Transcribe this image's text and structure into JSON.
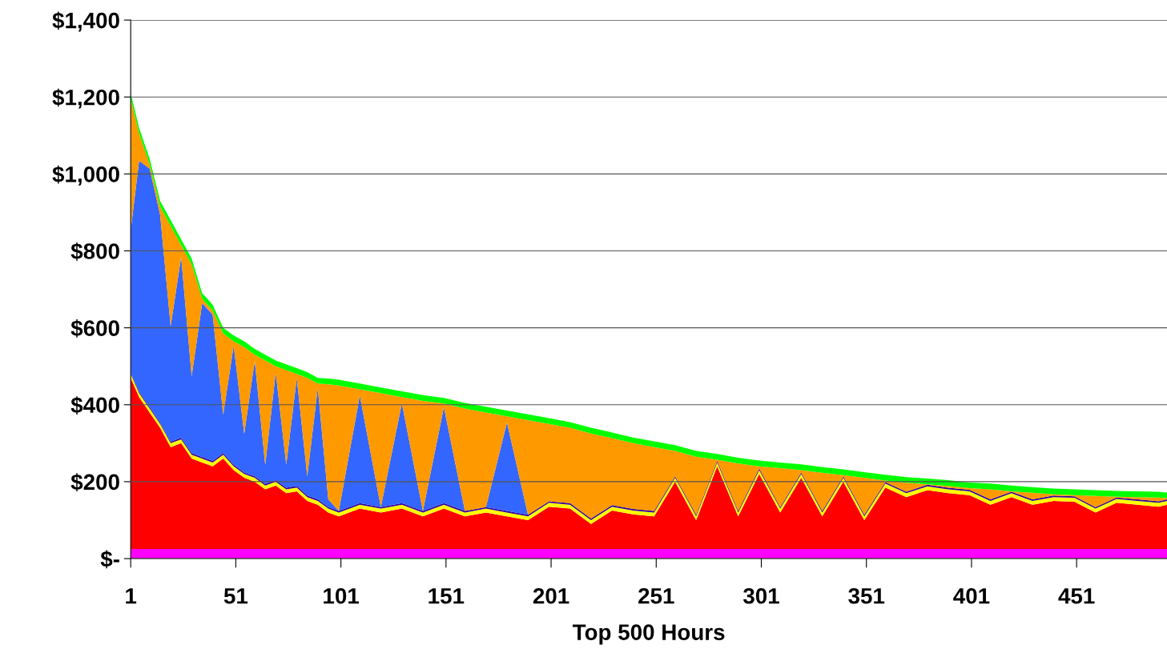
{
  "chart_data": {
    "type": "area",
    "stacked": true,
    "xlabel": "Top 500 Hours",
    "x": [
      1,
      5,
      10,
      15,
      20,
      25,
      30,
      35,
      40,
      45,
      50,
      55,
      60,
      65,
      70,
      75,
      80,
      85,
      90,
      95,
      100,
      110,
      120,
      130,
      140,
      150,
      160,
      170,
      180,
      190,
      200,
      210,
      220,
      230,
      240,
      250,
      260,
      270,
      280,
      290,
      300,
      310,
      320,
      330,
      340,
      350,
      360,
      370,
      380,
      390,
      400,
      410,
      420,
      430,
      440,
      450,
      460,
      470,
      480,
      490,
      494
    ],
    "xlim": [
      1,
      494
    ],
    "xticks": [
      1,
      51,
      101,
      151,
      201,
      251,
      301,
      351,
      401,
      451
    ],
    "ylim": [
      0,
      1400
    ],
    "yticks": [
      {
        "value": 0,
        "label": "$-"
      },
      {
        "value": 200,
        "label": "$200"
      },
      {
        "value": 400,
        "label": "$400"
      },
      {
        "value": 600,
        "label": "$600"
      },
      {
        "value": 800,
        "label": "$800"
      },
      {
        "value": 1000,
        "label": "$1,000"
      },
      {
        "value": 1200,
        "label": "$1,200"
      },
      {
        "value": 1400,
        "label": "$1,400"
      }
    ],
    "grid": "y",
    "legend": false,
    "series": [
      {
        "color": "#ff00ff",
        "values": [
          25,
          25,
          25,
          25,
          25,
          25,
          25,
          25,
          25,
          25,
          25,
          25,
          25,
          25,
          25,
          25,
          25,
          25,
          25,
          25,
          25,
          25,
          25,
          25,
          25,
          25,
          25,
          25,
          25,
          25,
          25,
          25,
          25,
          25,
          25,
          25,
          25,
          25,
          25,
          25,
          25,
          25,
          25,
          25,
          25,
          25,
          25,
          25,
          25,
          25,
          25,
          25,
          25,
          25,
          25,
          25,
          25,
          25,
          25,
          25,
          25
        ]
      },
      {
        "color": "#ff0000",
        "values": [
          445,
          395,
          355,
          315,
          265,
          275,
          235,
          225,
          215,
          235,
          205,
          185,
          175,
          155,
          165,
          145,
          150,
          125,
          115,
          95,
          85,
          105,
          95,
          105,
          85,
          105,
          85,
          95,
          85,
          75,
          110,
          105,
          65,
          100,
          90,
          85,
          175,
          75,
          215,
          85,
          195,
          95,
          185,
          85,
          175,
          75,
          160,
          135,
          153,
          145,
          140,
          115,
          135,
          115,
          125,
          123,
          95,
          120,
          115,
          110,
          115
        ]
      },
      {
        "color": "#ffff00",
        "values": [
          10,
          10,
          10,
          10,
          10,
          10,
          10,
          10,
          10,
          10,
          10,
          10,
          10,
          10,
          10,
          10,
          10,
          10,
          10,
          10,
          10,
          10,
          10,
          10,
          10,
          10,
          10,
          10,
          10,
          10,
          10,
          10,
          10,
          10,
          10,
          10,
          10,
          10,
          10,
          10,
          10,
          10,
          10,
          10,
          10,
          10,
          10,
          10,
          10,
          10,
          10,
          10,
          10,
          10,
          10,
          10,
          10,
          10,
          10,
          10,
          10
        ]
      },
      {
        "color": "#330099",
        "values": [
          4,
          4,
          4,
          4,
          4,
          4,
          4,
          4,
          4,
          4,
          4,
          4,
          4,
          4,
          4,
          4,
          4,
          4,
          4,
          4,
          4,
          4,
          4,
          4,
          4,
          4,
          4,
          4,
          4,
          4,
          4,
          4,
          4,
          4,
          4,
          4,
          4,
          4,
          4,
          4,
          4,
          4,
          4,
          4,
          4,
          4,
          4,
          4,
          4,
          4,
          4,
          4,
          4,
          4,
          4,
          4,
          4,
          4,
          4,
          4,
          4
        ]
      },
      {
        "color": "#3366ff",
        "values": [
          370,
          600,
          620,
          540,
          300,
          470,
          200,
          400,
          380,
          100,
          310,
          100,
          300,
          50,
          280,
          60,
          280,
          50,
          290,
          20,
          0,
          280,
          0,
          260,
          0,
          250,
          0,
          0,
          230,
          0,
          0,
          0,
          0,
          0,
          0,
          0,
          0,
          0,
          0,
          0,
          0,
          0,
          0,
          0,
          0,
          0,
          0,
          0,
          0,
          0,
          0,
          0,
          0,
          0,
          0,
          0,
          0,
          0,
          0,
          0,
          0
        ]
      },
      {
        "color": "#ff9900",
        "values": [
          341,
          71,
          11,
          21,
          261,
          31,
          291,
          11,
          11,
          211,
          11,
          226,
          16,
          271,
          16,
          246,
          11,
          256,
          11,
          299,
          326,
          16,
          296,
          16,
          286,
          9,
          266,
          246,
          16,
          246,
          201,
          196,
          221,
          174,
          171,
          166,
          66,
          151,
          3,
          123,
          6,
          101,
          6,
          99,
          3,
          96,
          4,
          23,
          1,
          5,
          4,
          26,
          1,
          17,
          3,
          3,
          29,
          2,
          6,
          10,
          3
        ]
      },
      {
        "color": "#00ff00",
        "values": [
          15,
          15,
          15,
          15,
          15,
          15,
          15,
          15,
          15,
          15,
          15,
          15,
          15,
          15,
          15,
          15,
          15,
          15,
          15,
          15,
          15,
          15,
          15,
          15,
          15,
          15,
          15,
          15,
          15,
          15,
          15,
          15,
          15,
          15,
          15,
          15,
          15,
          15,
          15,
          15,
          15,
          15,
          15,
          15,
          15,
          15,
          15,
          15,
          15,
          15,
          15,
          15,
          15,
          15,
          15,
          15,
          15,
          15,
          15,
          15,
          15
        ]
      }
    ]
  }
}
